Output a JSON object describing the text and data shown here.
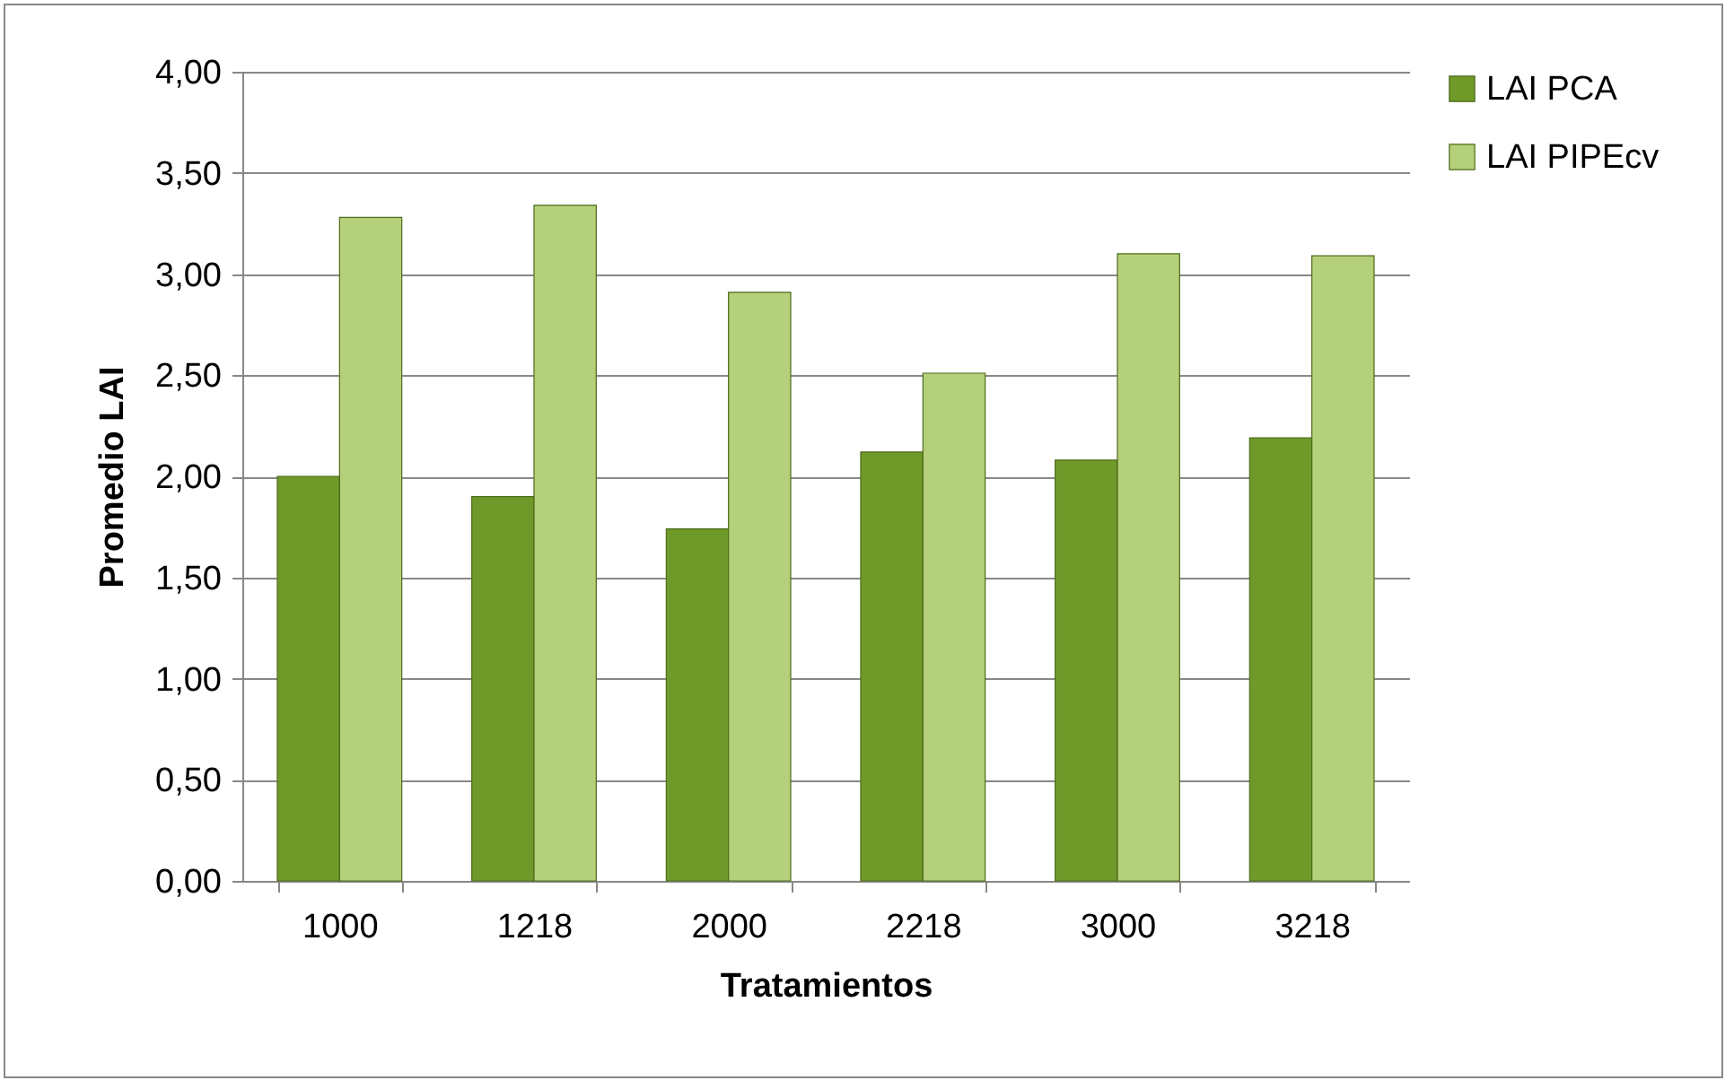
{
  "chart_data": {
    "type": "bar",
    "xlabel": "Tratamientos",
    "ylabel": "Promedio LAI",
    "categories": [
      "1000",
      "1218",
      "2000",
      "2218",
      "3000",
      "3218"
    ],
    "series": [
      {
        "name": "LAI PCA",
        "color": "#6f9a2a",
        "values": [
          2.0,
          1.9,
          1.74,
          2.12,
          2.08,
          2.19
        ]
      },
      {
        "name": "LAI PIPEcv",
        "color": "#b5d07a",
        "values": [
          3.28,
          3.34,
          2.91,
          2.51,
          3.1,
          3.09
        ]
      }
    ],
    "ylim": [
      0,
      4
    ],
    "yticks": [
      {
        "value": 0,
        "label": "0,00"
      },
      {
        "value": 0.5,
        "label": "0,50"
      },
      {
        "value": 1,
        "label": "1,00"
      },
      {
        "value": 1.5,
        "label": "1,50"
      },
      {
        "value": 2,
        "label": "2,00"
      },
      {
        "value": 2.5,
        "label": "2,50"
      },
      {
        "value": 3,
        "label": "3,00"
      },
      {
        "value": 3.5,
        "label": "3,50"
      },
      {
        "value": 4,
        "label": "4,00"
      }
    ],
    "grid": "y",
    "legend": "right"
  }
}
